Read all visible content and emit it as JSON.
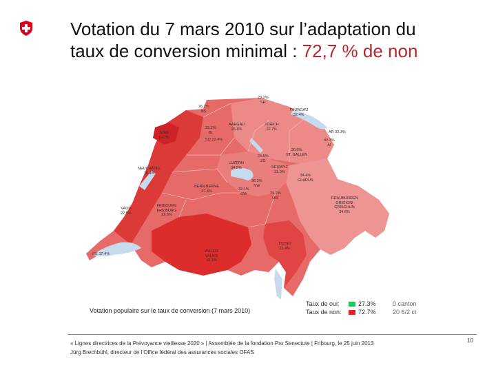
{
  "header": {
    "title_line1": "Votation du 7 mars 2010 sur l’adaptation du",
    "title_line2_prefix": "taux de conversion minimal : ",
    "title_line2_accent": "72,7 % de non",
    "accent_color": "#b5282c"
  },
  "logo": {
    "icon": "swiss-cross-icon",
    "color": "#e1001a"
  },
  "map": {
    "caption": "Votation populaire sur le taux de conversion (7 mars 2010)",
    "cantons": [
      {
        "name": "BS",
        "value": "26,2%"
      },
      {
        "name": "SH",
        "value": "29.2%"
      },
      {
        "name": "THURGAU",
        "value": "32.4%"
      },
      {
        "name": "AARGAU",
        "value": "26.8%"
      },
      {
        "name": "BL",
        "value": "23.2%"
      },
      {
        "name": "SO",
        "value": "22.4%"
      },
      {
        "name": "ZÜRICH",
        "value": "32.7%"
      },
      {
        "name": "AR",
        "value": "32.3%"
      },
      {
        "name": "AI",
        "value": "42.3%"
      },
      {
        "name": "JURA",
        "value": "14.2%"
      },
      {
        "name": "ST. GALLEN",
        "value": "30.9%"
      },
      {
        "name": "LUZERN",
        "value": "34.5%"
      },
      {
        "name": "ZG",
        "value": "34.5%"
      },
      {
        "name": "SCHWYZ",
        "value": "31.0%"
      },
      {
        "name": "NEUCHÂTEL",
        "value": "18.4%"
      },
      {
        "name": "GLARUS",
        "value": "34.4%"
      },
      {
        "name": "NW",
        "value": "36.3%"
      },
      {
        "name": "OW",
        "value": "32.1%"
      },
      {
        "name": "URI",
        "value": "29.2%"
      },
      {
        "name": "BERN BERNE",
        "value": "27.4%"
      },
      {
        "name": "GRAUBÜNDEN GRIGIONI GRISCHUN",
        "value": "34.6%"
      },
      {
        "name": "VAUD",
        "value": "22.5%"
      },
      {
        "name": "FRIBOURG FREIBURG",
        "value": "22.6%"
      },
      {
        "name": "GE",
        "value": "17.4%"
      },
      {
        "name": "TICINO",
        "value": "21.4%"
      },
      {
        "name": "WALLIS VALAIS",
        "value": "19.1%"
      }
    ]
  },
  "legend": {
    "yes_label": "Taux de oui:",
    "yes_pct": "27.3%",
    "yes_count": "0 canton",
    "yes_color": "#22c55e",
    "no_label": "Taux de non:",
    "no_pct": "72.7%",
    "no_count": "20 6/2 ct",
    "no_color": "#e0242b"
  },
  "footer": {
    "line1": "« Lignes directrices de la Prévoyance vieillesse 2020 » | Assemblée de la fondation Pro Senectute | Fribourg, le 25 juin 2013",
    "line2": "Jürg Brechbühl, directeur de l’Office fédéral des assurances sociales OFAS",
    "page_number": "10"
  }
}
